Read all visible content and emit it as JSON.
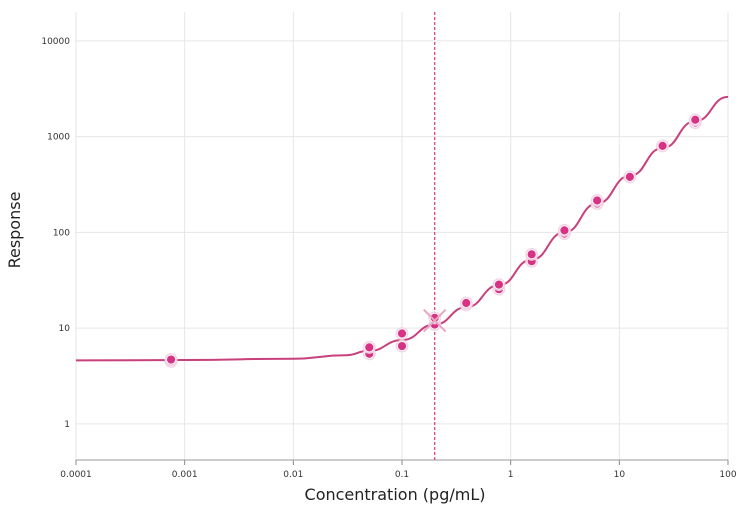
{
  "chart_data": {
    "type": "scatter",
    "xlabel": "Concentration (pg/mL)",
    "ylabel": "Response",
    "x_scale": "log",
    "y_scale": "log",
    "xlim": [
      0.0001,
      100
    ],
    "ylim": [
      0.42,
      20000
    ],
    "x_ticks": [
      0.0001,
      0.001,
      0.01,
      0.1,
      1,
      10,
      100
    ],
    "x_tick_labels": [
      "0.0001",
      "0.001",
      "0.01",
      "0.1",
      "1",
      "10",
      "100"
    ],
    "y_ticks": [
      1,
      10,
      100,
      1000,
      10000
    ],
    "y_tick_labels": [
      "1",
      "10",
      "100",
      "1000",
      "10000"
    ],
    "grid": true,
    "colors": {
      "series": "#d63384",
      "fit_line": "#c8407c",
      "reference_line": "#d63a6a",
      "grid": "#e6e6e6"
    },
    "points": [
      {
        "x": 0.00075,
        "y": 4.5
      },
      {
        "x": 0.00075,
        "y": 4.7
      },
      {
        "x": 0.05,
        "y": 5.4
      },
      {
        "x": 0.05,
        "y": 6.3
      },
      {
        "x": 0.1,
        "y": 6.5
      },
      {
        "x": 0.1,
        "y": 8.8
      },
      {
        "x": 0.2,
        "y": 10.9
      },
      {
        "x": 0.2,
        "y": 12.8
      },
      {
        "x": 0.39,
        "y": 17.5
      },
      {
        "x": 0.39,
        "y": 18.3
      },
      {
        "x": 0.78,
        "y": 25.5
      },
      {
        "x": 0.78,
        "y": 28.5
      },
      {
        "x": 1.56,
        "y": 50
      },
      {
        "x": 1.56,
        "y": 59
      },
      {
        "x": 3.125,
        "y": 97
      },
      {
        "x": 3.125,
        "y": 105
      },
      {
        "x": 6.25,
        "y": 200
      },
      {
        "x": 6.25,
        "y": 215
      },
      {
        "x": 12.5,
        "y": 380
      },
      {
        "x": 25,
        "y": 800
      },
      {
        "x": 50,
        "y": 1400
      },
      {
        "x": 50,
        "y": 1500
      }
    ],
    "marker": {
      "x": 0.2,
      "y": 12
    },
    "fit_curve": {
      "x": [
        0.0001,
        0.001,
        0.01,
        0.03,
        0.05,
        0.1,
        0.2,
        0.39,
        0.78,
        1.56,
        3.125,
        6.25,
        12.5,
        25,
        50,
        100
      ],
      "y": [
        4.6,
        4.65,
        4.8,
        5.2,
        5.8,
        7.5,
        10.9,
        16.5,
        28,
        52,
        100,
        200,
        390,
        760,
        1450,
        2600
      ]
    },
    "reference_line_x": 0.2
  }
}
